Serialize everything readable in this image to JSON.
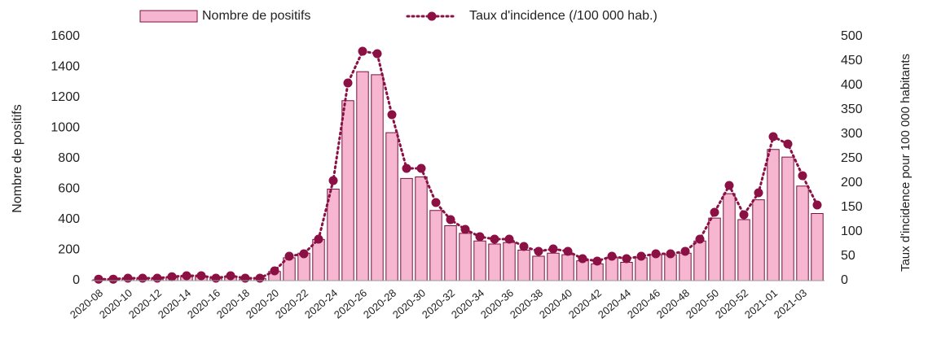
{
  "chart_data": {
    "type": "bar",
    "categories": [
      "2020-08",
      null,
      "2020-10",
      null,
      "2020-12",
      null,
      "2020-14",
      null,
      "2020-16",
      null,
      "2020-18",
      null,
      "2020-20",
      null,
      "2020-22",
      null,
      "2020-24",
      null,
      "2020-26",
      null,
      "2020-28",
      null,
      "2020-30",
      null,
      "2020-32",
      null,
      "2020-34",
      null,
      "2020-36",
      null,
      "2020-38",
      null,
      "2020-40",
      null,
      "2020-42",
      null,
      "2020-44",
      null,
      "2020-46",
      null,
      "2020-48",
      null,
      "2020-50",
      null,
      "2020-52",
      null,
      "2021-01",
      null,
      "2021-03",
      null
    ],
    "series": [
      {
        "name": "Nombre de positifs",
        "type": "bar",
        "color": "#f7b6cf",
        "edge": "#7a1040",
        "values": [
          5,
          5,
          10,
          10,
          10,
          20,
          25,
          25,
          15,
          25,
          10,
          15,
          60,
          150,
          180,
          270,
          600,
          1180,
          1370,
          1350,
          970,
          670,
          680,
          460,
          360,
          310,
          260,
          240,
          250,
          200,
          160,
          180,
          170,
          130,
          110,
          150,
          120,
          150,
          170,
          170,
          180,
          260,
          410,
          570,
          400,
          530,
          860,
          810,
          620,
          440
        ]
      },
      {
        "name": "Taux d'incidence (/100 000 hab.)",
        "type": "line",
        "axis": "y2",
        "color": "#8b1044",
        "values": [
          3,
          3,
          5,
          5,
          5,
          8,
          10,
          10,
          5,
          10,
          5,
          5,
          20,
          50,
          55,
          85,
          205,
          405,
          470,
          465,
          340,
          230,
          230,
          160,
          125,
          105,
          90,
          85,
          85,
          70,
          60,
          65,
          60,
          45,
          40,
          50,
          45,
          50,
          55,
          55,
          60,
          85,
          140,
          195,
          135,
          180,
          295,
          280,
          215,
          155
        ]
      }
    ],
    "ylabel": "Nombre de positifs",
    "y2label": "Taux d'incidence pour 100 000 habitants",
    "ylim": [
      0,
      1600
    ],
    "yticks": [
      0,
      200,
      400,
      600,
      800,
      1000,
      1200,
      1400,
      1600
    ],
    "y2lim": [
      0,
      500
    ],
    "y2ticks": [
      0,
      50,
      100,
      150,
      200,
      250,
      300,
      350,
      400,
      450,
      500
    ],
    "legend": "top"
  }
}
